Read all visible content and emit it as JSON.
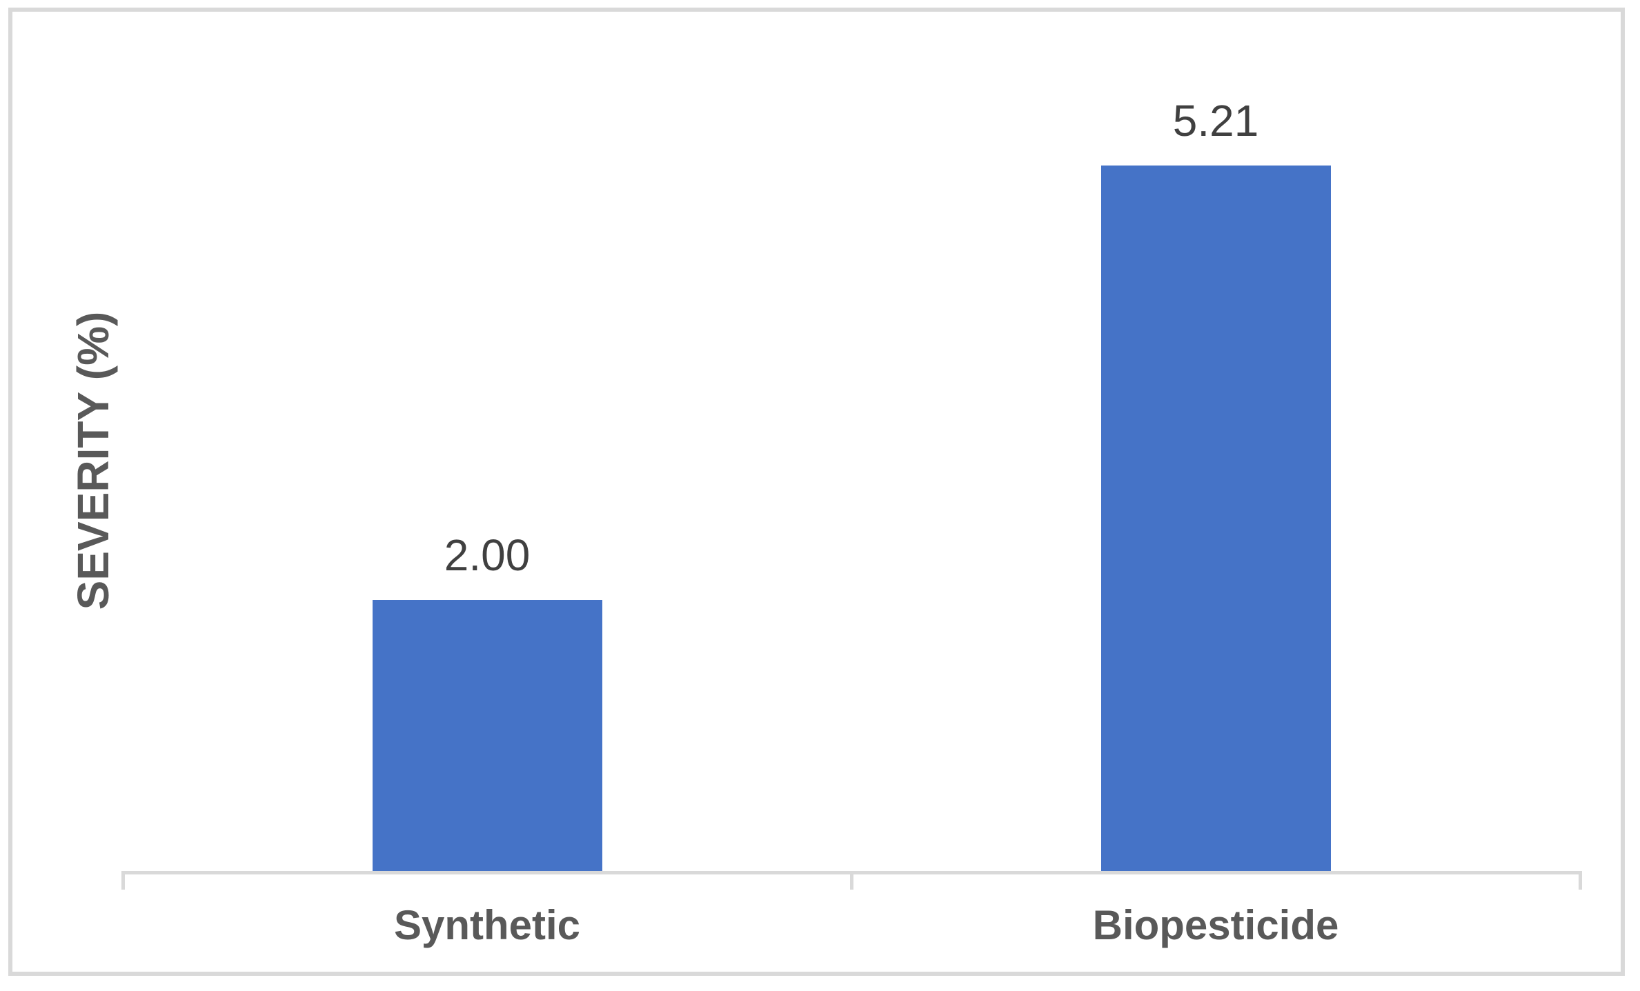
{
  "chart_data": {
    "type": "bar",
    "title": "",
    "xlabel": "",
    "ylabel": "SEVERITY (%)",
    "categories": [
      "Synthetic",
      "Biopesticide"
    ],
    "values": [
      2.0,
      5.21
    ],
    "value_labels": [
      "2.00",
      "5.21"
    ],
    "ylim": [
      0,
      6
    ],
    "grid": false,
    "legend": false,
    "y_tick_labels_visible": false,
    "bar_color": "#4573c7",
    "axis_color": "#d9d9d9",
    "frame_border_color": "#d9d9d9",
    "value_label_color": "#404040",
    "category_label_color": "#595959",
    "y_title_color": "#595959",
    "background_color": "#ffffff"
  }
}
